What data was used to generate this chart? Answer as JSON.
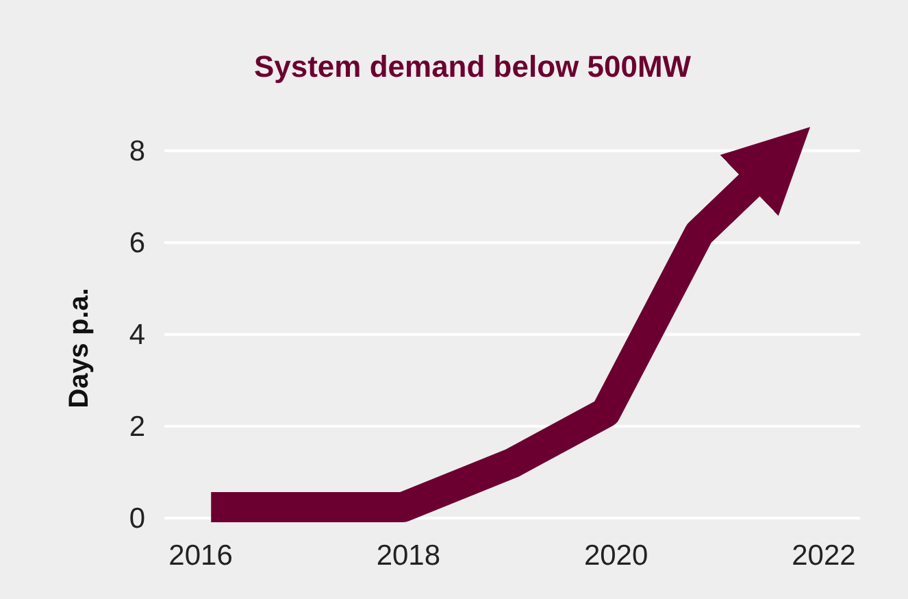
{
  "chart_data": {
    "type": "line",
    "title": "System demand below 500MW",
    "ylabel": "Days p.a.",
    "x": [
      2016.1,
      2017.95,
      2019.0,
      2019.9,
      2020.8,
      2021.4
    ],
    "series": [
      {
        "color": "#6b0030",
        "values": [
          0.24,
          0.24,
          1.2,
          2.3,
          6.2,
          7.5
        ]
      }
    ],
    "xlim": [
      2015.65,
      2022.35
    ],
    "xticks": [
      2016,
      2018,
      2020,
      2022
    ],
    "ylim": [
      0,
      8
    ],
    "yticks": [
      0,
      2,
      4,
      6,
      8
    ],
    "grid": "y",
    "marker": "none",
    "line_style": "solid"
  }
}
